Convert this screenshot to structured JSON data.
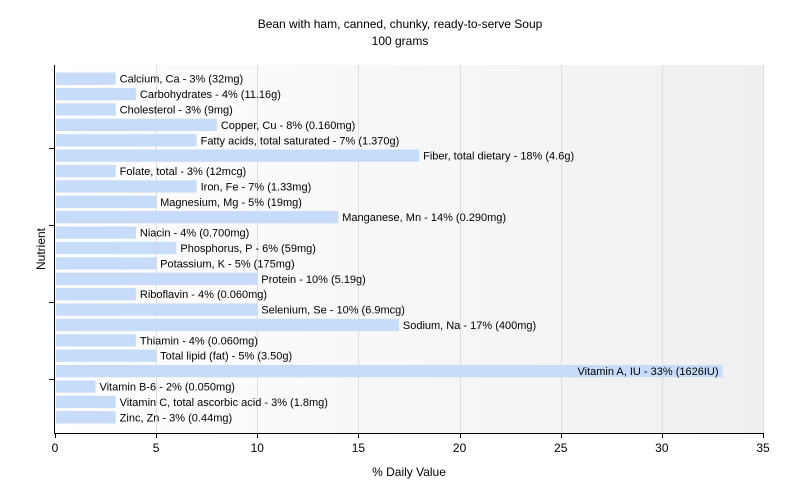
{
  "chart_data": {
    "type": "bar",
    "orientation": "horizontal",
    "title": "Bean with ham, canned, chunky, ready-to-serve Soup",
    "subtitle": "100 grams",
    "xlabel": "% Daily Value",
    "ylabel": "Nutrient",
    "xlim": [
      0,
      35
    ],
    "xticks": [
      0,
      5,
      10,
      15,
      20,
      25,
      30,
      35
    ],
    "grid": true,
    "legend": "none",
    "bar_color": "#c6dcf8",
    "categories": [
      "Calcium, Ca",
      "Carbohydrates",
      "Cholesterol",
      "Copper, Cu",
      "Fatty acids, total saturated",
      "Fiber, total dietary",
      "Folate, total",
      "Iron, Fe",
      "Magnesium, Mg",
      "Manganese, Mn",
      "Niacin",
      "Phosphorus, P",
      "Potassium, K",
      "Protein",
      "Riboflavin",
      "Selenium, Se",
      "Sodium, Na",
      "Thiamin",
      "Total lipid (fat)",
      "Vitamin A, IU",
      "Vitamin B-6",
      "Vitamin C, total ascorbic acid",
      "Zinc, Zn"
    ],
    "values": [
      3,
      4,
      3,
      8,
      7,
      18,
      3,
      7,
      5,
      14,
      4,
      6,
      5,
      10,
      4,
      10,
      17,
      4,
      5,
      33,
      2,
      3,
      3
    ],
    "labels": [
      "Calcium, Ca - 3% (32mg)",
      "Carbohydrates - 4% (11.16g)",
      "Cholesterol - 3% (9mg)",
      "Copper, Cu - 8% (0.160mg)",
      "Fatty acids, total saturated - 7% (1.370g)",
      "Fiber, total dietary - 18% (4.6g)",
      "Folate, total - 3% (12mcg)",
      "Iron, Fe - 7% (1.33mg)",
      "Magnesium, Mg - 5% (19mg)",
      "Manganese, Mn - 14% (0.290mg)",
      "Niacin - 4% (0.700mg)",
      "Phosphorus, P - 6% (59mg)",
      "Potassium, K - 5% (175mg)",
      "Protein - 10% (5.19g)",
      "Riboflavin - 4% (0.060mg)",
      "Selenium, Se - 10% (6.9mcg)",
      "Sodium, Na - 17% (400mg)",
      "Thiamin - 4% (0.060mg)",
      "Total lipid (fat) - 5% (3.50g)",
      "Vitamin A, IU - 33% (1626IU)",
      "Vitamin B-6 - 2% (0.050mg)",
      "Vitamin C, total ascorbic acid - 3% (1.8mg)",
      "Zinc, Zn - 3% (0.44mg)"
    ]
  }
}
